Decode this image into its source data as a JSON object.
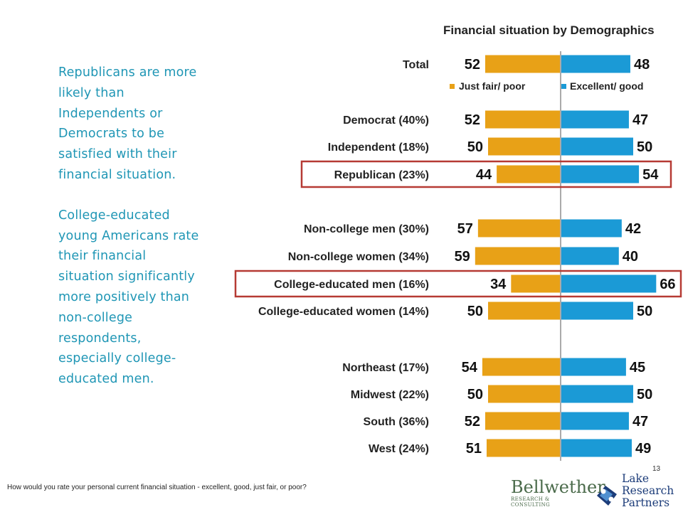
{
  "left_text": {
    "paragraph_1": "Republicans are more likely than Independents or Democrats to be satisfied with their financial situation.",
    "paragraph_2": "College-educated young Americans rate their financial situation significantly more positively than non-college respondents, especially college-educated men."
  },
  "footnote": "How would you rate your personal current financial situation - excellent, good, just fair, or poor?",
  "page_number": "13",
  "logos": {
    "bellwether_main": "Bellwether",
    "bellwether_sub": "RESEARCH & CONSULTING",
    "lake_line_1": "Lake",
    "lake_line_2": "Research",
    "lake_line_3": "Partners"
  },
  "colors": {
    "just_fair_poor": "#e8a117",
    "excellent_good": "#1b9ad6",
    "highlight_box": "#b63a34",
    "body_text": "#1f96b5"
  },
  "chart_data": {
    "type": "bar",
    "orientation": "horizontal-diverging",
    "title": "Financial situation by Demographics",
    "xlim": [
      0,
      66
    ],
    "legend": {
      "placement": "below-total-row"
    },
    "categories": [
      "Total",
      "Democrat (40%)",
      "Independent (18%)",
      "Republican (23%)",
      "Non-college men (30%)",
      "Non-college women (34%)",
      "College-educated men (16%)",
      "College-educated women (14%)",
      "Northeast (17%)",
      "Midwest (22%)",
      "South (36%)",
      "West (24%)"
    ],
    "groups": [
      [
        0
      ],
      [
        1,
        2,
        3
      ],
      [
        4,
        5,
        6,
        7
      ],
      [
        8,
        9,
        10,
        11
      ]
    ],
    "highlighted": [
      "Republican (23%)",
      "College-educated men (16%)"
    ],
    "series": [
      {
        "name": "Just fair/ poor",
        "side": "left",
        "values": [
          52,
          52,
          50,
          44,
          57,
          59,
          34,
          50,
          54,
          50,
          52,
          51
        ]
      },
      {
        "name": "Excellent/ good",
        "side": "right",
        "values": [
          48,
          47,
          50,
          54,
          42,
          40,
          66,
          50,
          45,
          50,
          47,
          49
        ]
      }
    ]
  }
}
